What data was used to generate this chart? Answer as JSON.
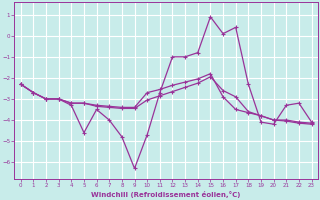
{
  "bg_color": "#c8ecea",
  "grid_color": "#ffffff",
  "line_color": "#993399",
  "spine_color": "#993399",
  "xlabel": "Windchill (Refroidissement éolien,°C)",
  "xlim": [
    -0.5,
    23.5
  ],
  "ylim": [
    -6.8,
    1.6
  ],
  "xticks": [
    0,
    1,
    2,
    3,
    4,
    5,
    6,
    7,
    8,
    9,
    10,
    11,
    12,
    13,
    14,
    15,
    16,
    17,
    18,
    19,
    20,
    21,
    22,
    23
  ],
  "yticks": [
    1,
    0,
    -1,
    -2,
    -3,
    -4,
    -5,
    -6
  ],
  "s1_x": [
    0,
    1,
    2,
    3,
    4,
    5,
    6,
    7,
    8,
    9,
    10,
    11,
    12,
    13,
    14,
    15,
    16,
    17,
    18,
    19,
    20,
    21,
    22,
    23
  ],
  "s1_y": [
    -2.3,
    -2.7,
    -3.0,
    -3.0,
    -3.3,
    -4.6,
    -3.5,
    -4.0,
    -4.8,
    -6.3,
    -4.7,
    -2.7,
    -1.0,
    -1.0,
    -0.8,
    0.9,
    0.1,
    0.4,
    -2.3,
    -4.1,
    -4.2,
    -3.3,
    -3.2,
    -4.1
  ],
  "s2_x": [
    0,
    1,
    2,
    3,
    4,
    5,
    6,
    7,
    8,
    9,
    10,
    11,
    12,
    13,
    14,
    15,
    16,
    17,
    18,
    19,
    20,
    21,
    22,
    23
  ],
  "s2_y": [
    -2.3,
    -2.7,
    -3.0,
    -3.0,
    -3.2,
    -3.2,
    -3.3,
    -3.35,
    -3.4,
    -3.4,
    -2.7,
    -2.55,
    -2.35,
    -2.2,
    -2.05,
    -1.8,
    -2.9,
    -3.5,
    -3.65,
    -3.8,
    -4.0,
    -4.0,
    -4.1,
    -4.15
  ],
  "s3_x": [
    0,
    1,
    2,
    3,
    4,
    5,
    6,
    7,
    8,
    9,
    10,
    11,
    12,
    13,
    14,
    15,
    16,
    17,
    18,
    19,
    20,
    21,
    22,
    23
  ],
  "s3_y": [
    -2.3,
    -2.7,
    -3.0,
    -3.0,
    -3.2,
    -3.2,
    -3.35,
    -3.4,
    -3.45,
    -3.45,
    -3.05,
    -2.85,
    -2.65,
    -2.45,
    -2.25,
    -1.95,
    -2.6,
    -2.9,
    -3.6,
    -3.8,
    -4.0,
    -4.05,
    -4.15,
    -4.2
  ]
}
